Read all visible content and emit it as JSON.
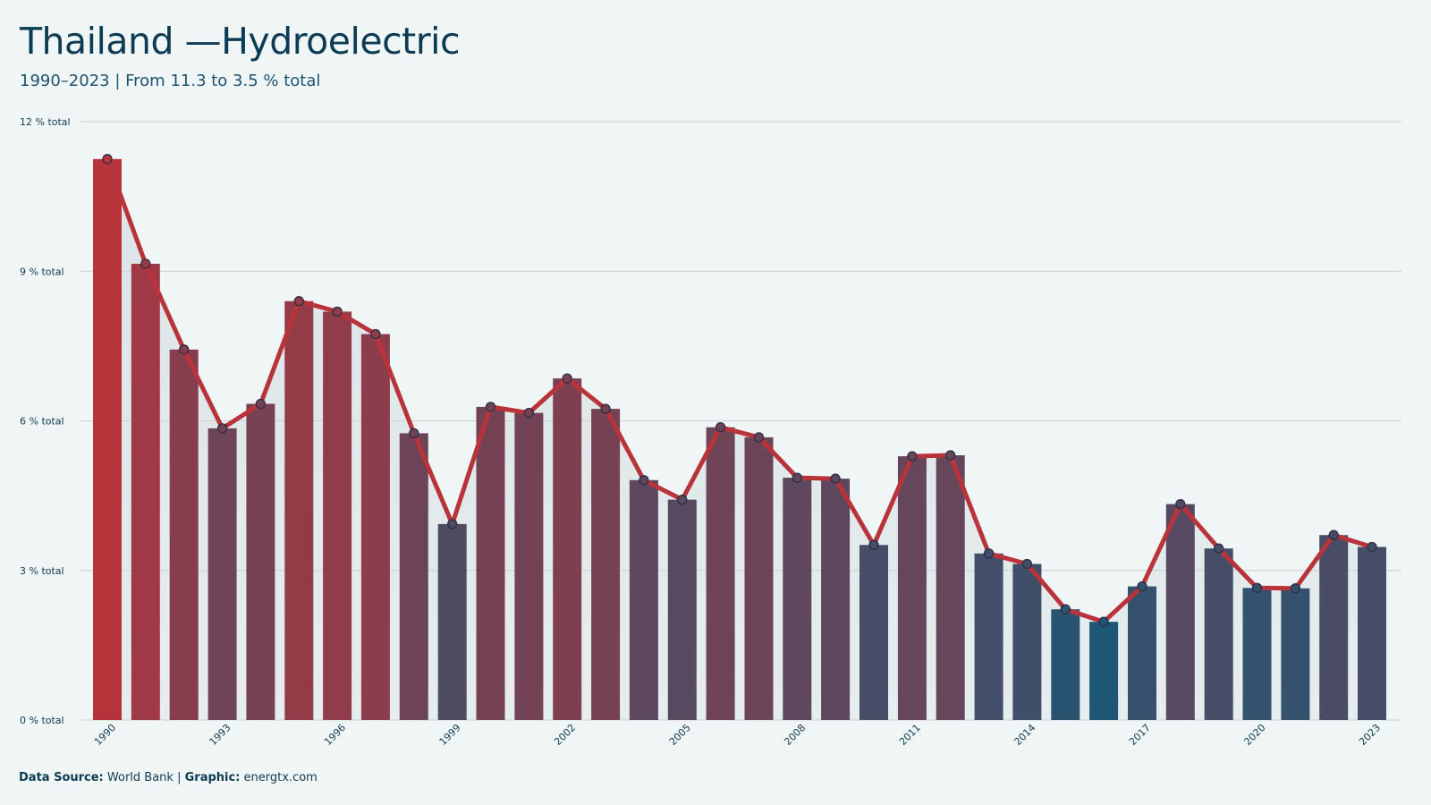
{
  "page": {
    "title": "Thailand —Hydroelectric",
    "subtitle": "1990–2023 | From 11.3 to 3.5 % total",
    "source_label": "Data Source:",
    "source_value": "World Bank",
    "separator": "|",
    "graphic_label": "Graphic:",
    "graphic_value": "energtx.com"
  },
  "colors": {
    "background": "#f0f5f5",
    "text": "#0d3b54",
    "line": "#b9333a",
    "high": "#b9333a",
    "low": "#1e5676",
    "marker_fill": "#4c5a74",
    "marker_stroke": "#2a2f45",
    "grid": "#c8d2d4"
  },
  "chart_data": {
    "type": "bar",
    "title": "Thailand —Hydroelectric",
    "subtitle": "1990–2023 | From 11.3 to 3.5 % total",
    "xlabel": "",
    "ylabel": "",
    "ylim": [
      0,
      12
    ],
    "yticks": [
      0,
      3,
      6,
      9,
      12
    ],
    "ytick_labels": [
      "0 % total",
      "3 % total",
      "6 % total",
      "9 % total",
      "12 % total"
    ],
    "xtick_labels": [
      "1990",
      "1993",
      "1996",
      "1999",
      "2002",
      "2005",
      "2008",
      "2011",
      "2014",
      "2017",
      "2020",
      "2023"
    ],
    "grid": true,
    "legend": "none",
    "overlay": "line with markers over bars",
    "categories": [
      "1990",
      "1991",
      "1992",
      "1993",
      "1994",
      "1995",
      "1996",
      "1997",
      "1998",
      "1999",
      "2000",
      "2001",
      "2002",
      "2003",
      "2004",
      "2005",
      "2006",
      "2007",
      "2008",
      "2009",
      "2010",
      "2011",
      "2012",
      "2013",
      "2014",
      "2015",
      "2016",
      "2017",
      "2018",
      "2019",
      "2020",
      "2021",
      "2022",
      "2023"
    ],
    "values": [
      11.25,
      9.15,
      7.43,
      5.85,
      6.34,
      8.4,
      8.19,
      7.74,
      5.75,
      3.93,
      6.28,
      6.16,
      6.85,
      6.24,
      4.81,
      4.42,
      5.87,
      5.67,
      4.86,
      4.84,
      3.51,
      5.29,
      5.31,
      3.34,
      3.13,
      2.22,
      1.97,
      2.68,
      4.33,
      3.44,
      2.65,
      2.64,
      3.71,
      3.47
    ]
  }
}
